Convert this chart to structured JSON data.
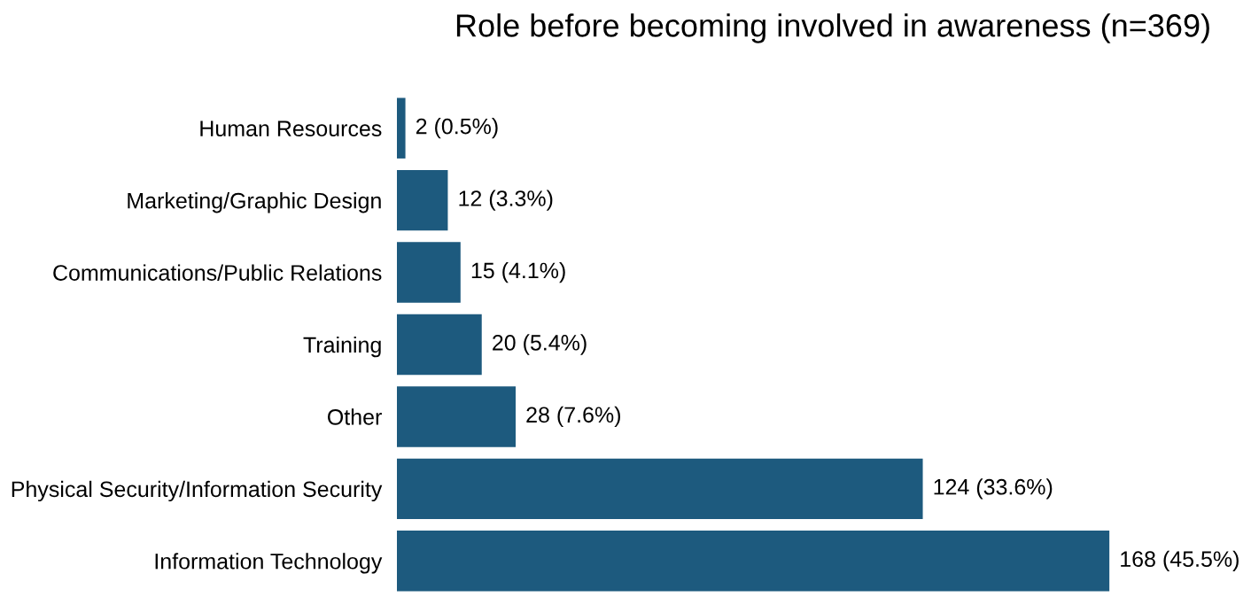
{
  "chart_data": {
    "type": "bar",
    "orientation": "horizontal",
    "title": "Role before becoming involved in awareness (n=369)",
    "categories": [
      "Human Resources",
      "Marketing/Graphic Design",
      "Communications/Public Relations",
      "Training",
      "Other",
      "Physical Security/Information Security",
      "Information Technology"
    ],
    "values": [
      2,
      12,
      15,
      20,
      28,
      124,
      168
    ],
    "value_labels": [
      "2 (0.5%)",
      "12 (3.3%)",
      "15 (4.1%)",
      "20 (5.4%)",
      "28 (7.6%)",
      "124 (33.6%)",
      "168 (45.5%)"
    ],
    "color": "#1d5a7e",
    "grid": false,
    "legend": false
  }
}
